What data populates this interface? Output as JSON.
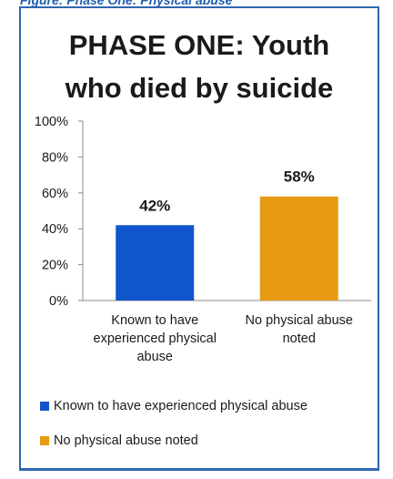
{
  "figure_caption": "Figure: Phase One: Physical abuse",
  "chart_data": {
    "type": "bar",
    "title": "PHASE ONE: Youth who died by suicide",
    "categories": [
      "Known to have experienced physical abuse",
      "No physical abuse noted"
    ],
    "values": [
      42,
      58
    ],
    "data_labels": [
      "42%",
      "58%"
    ],
    "colors": [
      "#1155cc",
      "#e69b12"
    ],
    "ylim": [
      0,
      100
    ],
    "yticks": [
      0,
      20,
      40,
      60,
      80,
      100
    ],
    "ytick_labels": [
      "0%",
      "20%",
      "40%",
      "60%",
      "80%",
      "100%"
    ],
    "category_lines": [
      [
        "Known to have",
        "experienced physical",
        "abuse"
      ],
      [
        "No physical abuse",
        "noted"
      ]
    ],
    "grid": false,
    "legend": {
      "position": "bottom",
      "entries": [
        "Known to have experienced physical abuse",
        "No physical abuse noted"
      ]
    },
    "xlabel": "",
    "ylabel": ""
  }
}
